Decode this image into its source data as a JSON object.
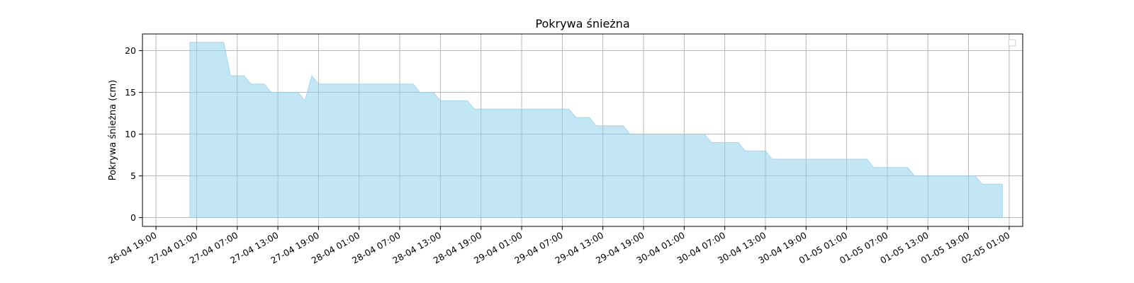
{
  "chart_data": {
    "type": "area",
    "title": "Pokrywa śnieżna",
    "xlabel": "",
    "ylabel": "Pokrywa śnieżna (cm)",
    "x_axis": "datetime",
    "xlim": [
      "2024-04-26 17:00",
      "2024-05-02 03:00"
    ],
    "ylim": [
      -1.05,
      22
    ],
    "x_ticks": [
      "26-04 19:00",
      "27-04 01:00",
      "27-04 07:00",
      "27-04 13:00",
      "27-04 19:00",
      "28-04 01:00",
      "28-04 07:00",
      "28-04 13:00",
      "28-04 19:00",
      "29-04 01:00",
      "29-04 07:00",
      "29-04 13:00",
      "29-04 19:00",
      "30-04 01:00",
      "30-04 07:00",
      "30-04 13:00",
      "30-04 19:00",
      "01-05 01:00",
      "01-05 07:00",
      "01-05 13:00",
      "01-05 19:00",
      "02-05 01:00"
    ],
    "y_ticks": [
      0,
      5,
      10,
      15,
      20
    ],
    "grid": true,
    "legend": "top-right",
    "fill_color": "#87CEEB",
    "fill_opacity": 0.5,
    "series": [
      {
        "x": [
          "2024-04-27 00:00",
          "2024-04-27 05:00",
          "2024-04-27 06:00",
          "2024-04-27 08:00",
          "2024-04-27 09:00",
          "2024-04-27 11:00",
          "2024-04-27 12:00",
          "2024-04-27 16:00",
          "2024-04-27 17:00",
          "2024-04-27 18:00",
          "2024-04-27 19:00",
          "2024-04-28 09:00",
          "2024-04-28 10:00",
          "2024-04-28 12:00",
          "2024-04-28 13:00",
          "2024-04-28 17:00",
          "2024-04-28 18:00",
          "2024-04-29 08:00",
          "2024-04-29 09:00",
          "2024-04-29 11:00",
          "2024-04-29 12:00",
          "2024-04-29 16:00",
          "2024-04-29 17:00",
          "2024-04-30 04:00",
          "2024-04-30 05:00",
          "2024-04-30 09:00",
          "2024-04-30 10:00",
          "2024-04-30 13:00",
          "2024-04-30 14:00",
          "2024-05-01 04:00",
          "2024-05-01 05:00",
          "2024-05-01 10:00",
          "2024-05-01 11:00",
          "2024-05-01 20:00",
          "2024-05-01 21:00",
          "2024-05-02 00:00"
        ],
        "values": [
          21,
          21,
          17,
          17,
          16,
          16,
          15,
          15,
          14,
          17,
          16,
          16,
          15,
          15,
          14,
          14,
          13,
          13,
          12,
          12,
          11,
          11,
          10,
          10,
          9,
          9,
          8,
          8,
          7,
          7,
          6,
          6,
          5,
          5,
          4,
          4
        ]
      }
    ]
  }
}
